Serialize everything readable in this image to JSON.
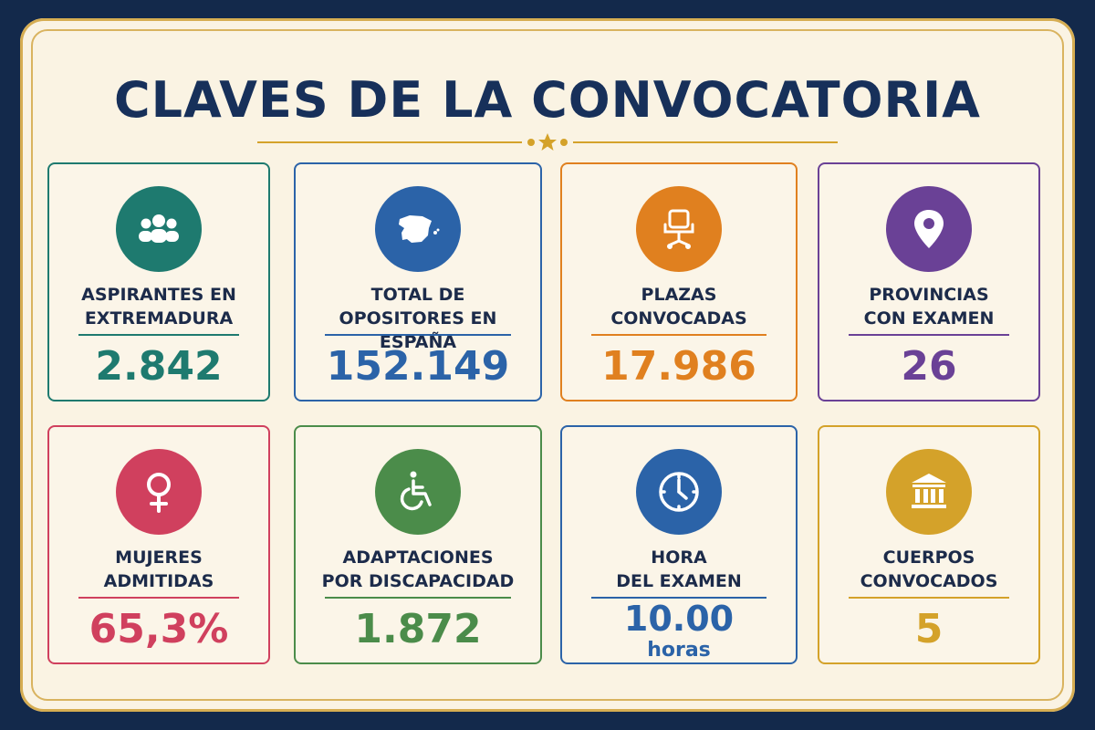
{
  "title": "CLAVES DE LA CONVOCATORIA",
  "cards": [
    {
      "label": "ASPIRANTES EN\nEXTREMADURA",
      "value": "2.842",
      "color": "#1e7a6f",
      "icon": "group-icon"
    },
    {
      "label": "TOTAL DE\nOPOSITORES EN ESPAÑA",
      "value": "152.149",
      "color": "#2b63a8",
      "icon": "spain-map-icon"
    },
    {
      "label": "PLAZAS\nCONVOCADAS",
      "value": "17.986",
      "color": "#e0801f",
      "icon": "office-chair-icon"
    },
    {
      "label": "PROVINCIAS\nCON EXAMEN",
      "value": "26",
      "color": "#6a4196",
      "icon": "location-pin-icon"
    },
    {
      "label": "MUJERES\nADMITIDAS",
      "value": "65,3%",
      "color": "#d0405e",
      "icon": "female-symbol-icon"
    },
    {
      "label": "ADAPTACIONES\nPOR DISCAPACIDAD",
      "value": "1.872",
      "color": "#4b8c4a",
      "icon": "wheelchair-icon"
    },
    {
      "label": "HORA\nDEL EXAMEN",
      "value": "10.00",
      "sub": "horas",
      "color": "#2b63a8",
      "icon": "clock-icon"
    },
    {
      "label": "CUERPOS\nCONVOCADOS",
      "value": "5",
      "color": "#d4a22a",
      "icon": "institution-building-icon"
    }
  ]
}
